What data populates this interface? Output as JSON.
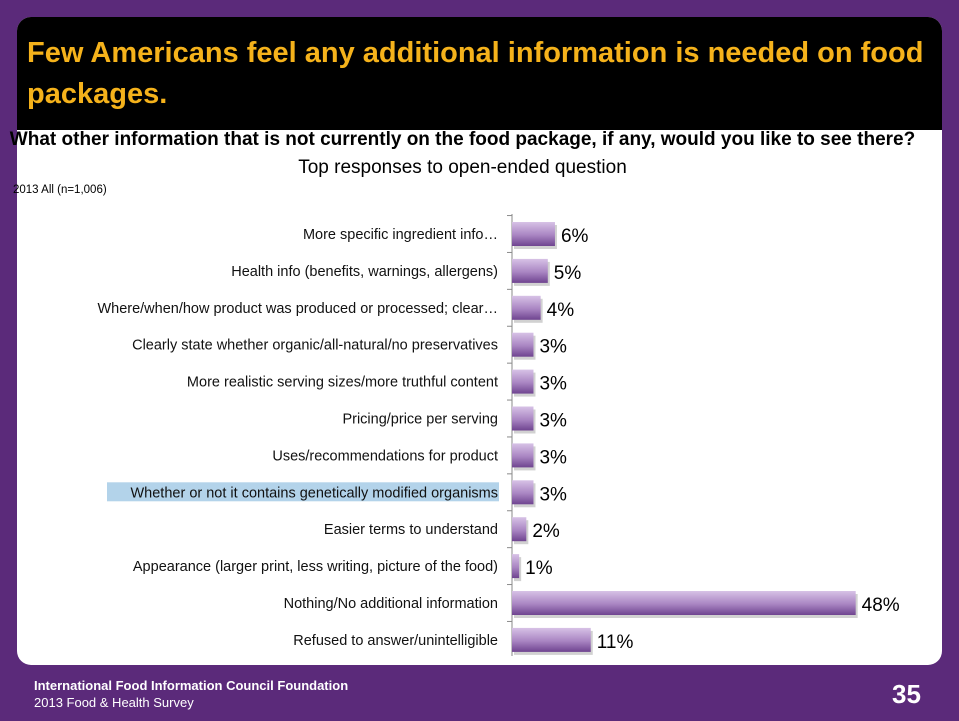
{
  "slide": {
    "title": "Few Americans feel any additional information is needed on food packages.",
    "question_bold": "What other information that is not currently on the food package, if any, would you like to see there?",
    "question_normal": "Top responses to open-ended question",
    "base_note": "2013 All (n=1,006)",
    "footer_org": "International Food Information Council Foundation",
    "footer_survey": "2013 Food & Health Survey",
    "page_number": "35"
  },
  "colors": {
    "frame": "#5b2a7a",
    "title_text": "#f5b21b",
    "bar_dark": "#7a4e96",
    "bar_light": "#d7c2e6",
    "highlight": "#b3d3ea"
  },
  "chart_data": {
    "type": "bar",
    "orientation": "horizontal",
    "highlighted_index": 7,
    "categories": [
      "More specific ingredient info…",
      "Health info (benefits, warnings, allergens)",
      "Where/when/how product was produced or processed; clear…",
      "Clearly state whether organic/all-natural/no preservatives",
      "More realistic serving sizes/more truthful content",
      "Pricing/price per serving",
      "Uses/recommendations for product",
      "Whether or not it contains genetically modified organisms",
      "Easier terms to understand",
      "Appearance (larger print, less writing, picture of the food)",
      "Nothing/No additional information",
      "Refused to answer/unintelligible"
    ],
    "values": [
      6,
      5,
      4,
      3,
      3,
      3,
      3,
      3,
      2,
      1,
      48,
      11
    ],
    "value_labels": [
      "6%",
      "5%",
      "4%",
      "3%",
      "3%",
      "3%",
      "3%",
      "3%",
      "2%",
      "1%",
      "48%",
      "11%"
    ],
    "xlim": [
      0,
      50
    ]
  }
}
